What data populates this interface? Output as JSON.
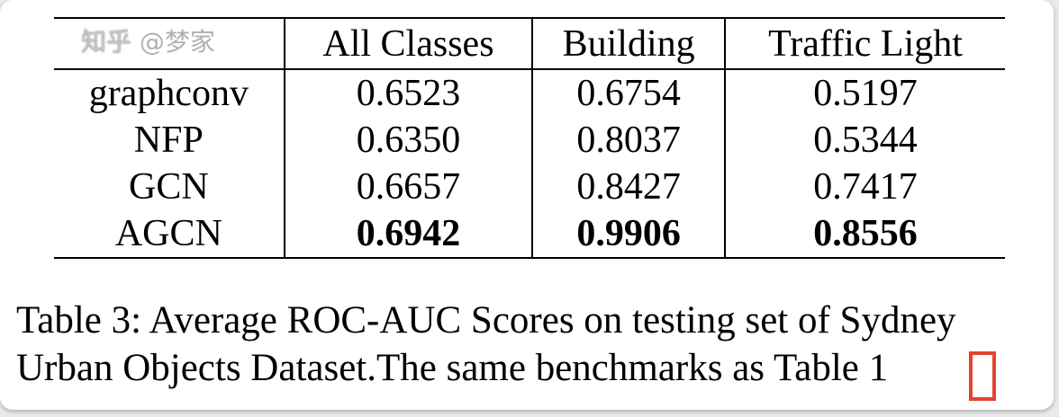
{
  "table": {
    "columns": [
      "",
      "All Classes",
      "Building",
      "Traffic Light"
    ],
    "rows": [
      {
        "method": "graphconv",
        "values": [
          "0.6523",
          "0.6754",
          "0.5197"
        ],
        "bold": false
      },
      {
        "method": "NFP",
        "values": [
          "0.6350",
          "0.8037",
          "0.5344"
        ],
        "bold": false
      },
      {
        "method": "GCN",
        "values": [
          "0.6657",
          "0.8427",
          "0.7417"
        ],
        "bold": false
      },
      {
        "method": "AGCN",
        "values": [
          "0.6942",
          "0.9906",
          "0.8556"
        ],
        "bold": true
      }
    ]
  },
  "caption": {
    "line1": "Table 3: Average ROC-AUC Scores on testing set of Sydney",
    "line2": "Urban Objects Dataset.The same benchmarks as Table 1"
  },
  "watermark": {
    "text1": "知乎",
    "text2": "@梦家"
  },
  "colors": {
    "highlight_box": "#e2442f"
  }
}
